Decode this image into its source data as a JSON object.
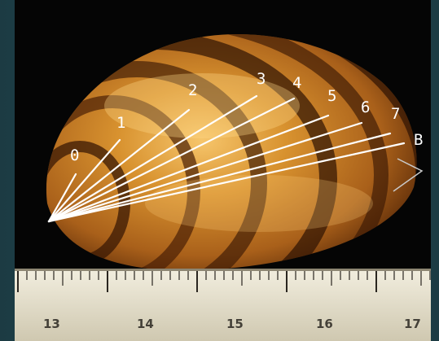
{
  "figure": {
    "growth_ring_labels": [
      "0",
      "1",
      "2",
      "3",
      "4",
      "5",
      "6",
      "7",
      "B"
    ],
    "ruler_numbers": [
      "13",
      "14",
      "15",
      "16",
      "17"
    ],
    "colors": {
      "background_frame": "#1d3d44",
      "accent_tab": "#c61e24",
      "shell_amber": "#d28a2a",
      "shell_dark_band": "#3a1804",
      "measure_lines": "#ffffff",
      "ruler": "#e8e2cf"
    }
  }
}
